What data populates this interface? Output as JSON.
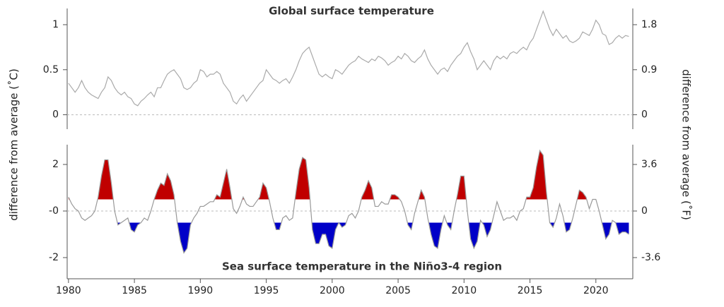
{
  "chart_data": [
    {
      "type": "line",
      "title": "Global surface temperature",
      "ylabel": "difference from average (˚C)",
      "y2label": "difference from average (˚F)",
      "x": [
        1980,
        1980.25,
        1980.5,
        1980.75,
        1981,
        1981.25,
        1981.5,
        1981.75,
        1982,
        1982.25,
        1982.5,
        1982.75,
        1983,
        1983.25,
        1983.5,
        1983.75,
        1984,
        1984.25,
        1984.5,
        1984.75,
        1985,
        1985.25,
        1985.5,
        1985.75,
        1986,
        1986.25,
        1986.5,
        1986.75,
        1987,
        1987.25,
        1987.5,
        1987.75,
        1988,
        1988.25,
        1988.5,
        1988.75,
        1989,
        1989.25,
        1989.5,
        1989.75,
        1990,
        1990.25,
        1990.5,
        1990.75,
        1991,
        1991.25,
        1991.5,
        1991.75,
        1992,
        1992.25,
        1992.5,
        1992.75,
        1993,
        1993.25,
        1993.5,
        1993.75,
        1994,
        1994.25,
        1994.5,
        1994.75,
        1995,
        1995.25,
        1995.5,
        1995.75,
        1996,
        1996.25,
        1996.5,
        1996.75,
        1997,
        1997.25,
        1997.5,
        1997.75,
        1998,
        1998.25,
        1998.5,
        1998.75,
        1999,
        1999.25,
        1999.5,
        1999.75,
        2000,
        2000.25,
        2000.5,
        2000.75,
        2001,
        2001.25,
        2001.5,
        2001.75,
        2002,
        2002.25,
        2002.5,
        2002.75,
        2003,
        2003.25,
        2003.5,
        2003.75,
        2004,
        2004.25,
        2004.5,
        2004.75,
        2005,
        2005.25,
        2005.5,
        2005.75,
        2006,
        2006.25,
        2006.5,
        2006.75,
        2007,
        2007.25,
        2007.5,
        2007.75,
        2008,
        2008.25,
        2008.5,
        2008.75,
        2009,
        2009.25,
        2009.5,
        2009.75,
        2010,
        2010.25,
        2010.5,
        2010.75,
        2011,
        2011.25,
        2011.5,
        2011.75,
        2012,
        2012.25,
        2012.5,
        2012.75,
        2013,
        2013.25,
        2013.5,
        2013.75,
        2014,
        2014.25,
        2014.5,
        2014.75,
        2015,
        2015.25,
        2015.5,
        2015.75,
        2016,
        2016.25,
        2016.5,
        2016.75,
        2017,
        2017.25,
        2017.5,
        2017.75,
        2018,
        2018.25,
        2018.5,
        2018.75,
        2019,
        2019.25,
        2019.5,
        2019.75,
        2020,
        2020.25,
        2020.5,
        2020.75,
        2021,
        2021.25,
        2021.5,
        2021.75,
        2022,
        2022.25,
        2022.5
      ],
      "values": [
        0.35,
        0.3,
        0.25,
        0.3,
        0.38,
        0.3,
        0.25,
        0.22,
        0.2,
        0.18,
        0.25,
        0.3,
        0.42,
        0.38,
        0.3,
        0.25,
        0.22,
        0.25,
        0.2,
        0.18,
        0.12,
        0.1,
        0.15,
        0.18,
        0.22,
        0.25,
        0.2,
        0.3,
        0.3,
        0.38,
        0.45,
        0.48,
        0.5,
        0.45,
        0.4,
        0.3,
        0.28,
        0.3,
        0.35,
        0.38,
        0.5,
        0.48,
        0.42,
        0.45,
        0.45,
        0.48,
        0.45,
        0.35,
        0.3,
        0.25,
        0.15,
        0.12,
        0.18,
        0.22,
        0.15,
        0.2,
        0.25,
        0.3,
        0.35,
        0.38,
        0.5,
        0.45,
        0.4,
        0.38,
        0.35,
        0.38,
        0.4,
        0.35,
        0.42,
        0.5,
        0.6,
        0.68,
        0.72,
        0.75,
        0.65,
        0.55,
        0.45,
        0.42,
        0.45,
        0.42,
        0.4,
        0.5,
        0.48,
        0.45,
        0.5,
        0.55,
        0.58,
        0.6,
        0.65,
        0.62,
        0.6,
        0.58,
        0.62,
        0.6,
        0.65,
        0.63,
        0.6,
        0.55,
        0.58,
        0.6,
        0.65,
        0.62,
        0.68,
        0.65,
        0.6,
        0.58,
        0.62,
        0.65,
        0.72,
        0.62,
        0.55,
        0.5,
        0.45,
        0.5,
        0.52,
        0.48,
        0.55,
        0.6,
        0.65,
        0.68,
        0.75,
        0.8,
        0.7,
        0.62,
        0.5,
        0.55,
        0.6,
        0.55,
        0.5,
        0.6,
        0.65,
        0.62,
        0.65,
        0.62,
        0.68,
        0.7,
        0.68,
        0.72,
        0.75,
        0.72,
        0.8,
        0.85,
        0.95,
        1.05,
        1.15,
        1.05,
        0.95,
        0.88,
        0.95,
        0.9,
        0.85,
        0.88,
        0.82,
        0.8,
        0.82,
        0.85,
        0.92,
        0.9,
        0.88,
        0.95,
        1.05,
        1.0,
        0.9,
        0.88,
        0.78,
        0.8,
        0.85,
        0.88,
        0.85,
        0.88,
        0.87
      ],
      "color": "#aaaaaa",
      "xlim": [
        1979.9,
        2022.8
      ],
      "ylim": [
        -0.16,
        1.18
      ],
      "yticks": [
        0,
        0.5,
        1
      ],
      "y2lim": [
        -0.288,
        2.124
      ],
      "y2ticks": [
        0,
        0.9,
        1.8
      ]
    },
    {
      "type": "line",
      "title": "Sea surface temperature in the Niño3-4 region",
      "x": [
        1980,
        1980.25,
        1980.5,
        1980.75,
        1981,
        1981.25,
        1981.5,
        1981.75,
        1982,
        1982.25,
        1982.5,
        1982.75,
        1983,
        1983.25,
        1983.5,
        1983.75,
        1984,
        1984.25,
        1984.5,
        1984.75,
        1985,
        1985.25,
        1985.5,
        1985.75,
        1986,
        1986.25,
        1986.5,
        1986.75,
        1987,
        1987.25,
        1987.5,
        1987.75,
        1988,
        1988.25,
        1988.5,
        1988.75,
        1989,
        1989.25,
        1989.5,
        1989.75,
        1990,
        1990.25,
        1990.5,
        1990.75,
        1991,
        1991.25,
        1991.5,
        1991.75,
        1992,
        1992.25,
        1992.5,
        1992.75,
        1993,
        1993.25,
        1993.5,
        1993.75,
        1994,
        1994.25,
        1994.5,
        1994.75,
        1995,
        1995.25,
        1995.5,
        1995.75,
        1996,
        1996.25,
        1996.5,
        1996.75,
        1997,
        1997.25,
        1997.5,
        1997.75,
        1998,
        1998.25,
        1998.5,
        1998.75,
        1999,
        1999.25,
        1999.5,
        1999.75,
        2000,
        2000.25,
        2000.5,
        2000.75,
        2001,
        2001.25,
        2001.5,
        2001.75,
        2002,
        2002.25,
        2002.5,
        2002.75,
        2003,
        2003.25,
        2003.5,
        2003.75,
        2004,
        2004.25,
        2004.5,
        2004.75,
        2005,
        2005.25,
        2005.5,
        2005.75,
        2006,
        2006.25,
        2006.5,
        2006.75,
        2007,
        2007.25,
        2007.5,
        2007.75,
        2008,
        2008.25,
        2008.5,
        2008.75,
        2009,
        2009.25,
        2009.5,
        2009.75,
        2010,
        2010.25,
        2010.5,
        2010.75,
        2011,
        2011.25,
        2011.5,
        2011.75,
        2012,
        2012.25,
        2012.5,
        2012.75,
        2013,
        2013.25,
        2013.5,
        2013.75,
        2014,
        2014.25,
        2014.5,
        2014.75,
        2015,
        2015.25,
        2015.5,
        2015.75,
        2016,
        2016.25,
        2016.5,
        2016.75,
        2017,
        2017.25,
        2017.5,
        2017.75,
        2018,
        2018.25,
        2018.5,
        2018.75,
        2019,
        2019.25,
        2019.5,
        2019.75,
        2020,
        2020.25,
        2020.5,
        2020.75,
        2021,
        2021.25,
        2021.5,
        2021.75,
        2022,
        2022.25,
        2022.5
      ],
      "values": [
        0.6,
        0.3,
        0.1,
        0.0,
        -0.3,
        -0.4,
        -0.3,
        -0.2,
        0.0,
        0.6,
        1.5,
        2.2,
        2.2,
        1.2,
        0.0,
        -0.6,
        -0.5,
        -0.4,
        -0.3,
        -0.8,
        -0.9,
        -0.6,
        -0.5,
        -0.3,
        -0.4,
        0.0,
        0.5,
        0.9,
        1.2,
        1.1,
        1.6,
        1.3,
        0.7,
        -0.5,
        -1.3,
        -1.8,
        -1.6,
        -0.6,
        -0.3,
        -0.1,
        0.2,
        0.2,
        0.3,
        0.4,
        0.4,
        0.7,
        0.6,
        1.2,
        1.8,
        1.0,
        0.1,
        -0.1,
        0.2,
        0.6,
        0.3,
        0.2,
        0.2,
        0.4,
        0.6,
        1.2,
        1.0,
        0.4,
        -0.3,
        -0.8,
        -0.8,
        -0.3,
        -0.2,
        -0.4,
        -0.3,
        0.8,
        1.8,
        2.3,
        2.2,
        1.0,
        -0.8,
        -1.4,
        -1.4,
        -1.0,
        -1.0,
        -1.5,
        -1.6,
        -0.8,
        -0.5,
        -0.7,
        -0.6,
        -0.2,
        -0.1,
        -0.3,
        0.0,
        0.6,
        0.9,
        1.3,
        1.0,
        0.2,
        0.2,
        0.4,
        0.3,
        0.3,
        0.7,
        0.7,
        0.6,
        0.4,
        0.0,
        -0.6,
        -0.8,
        -0.1,
        0.4,
        0.9,
        0.6,
        -0.3,
        -1.0,
        -1.5,
        -1.6,
        -0.8,
        -0.2,
        -0.6,
        -0.8,
        0.0,
        0.7,
        1.5,
        1.5,
        0.0,
        -1.2,
        -1.6,
        -1.3,
        -0.4,
        -0.6,
        -1.1,
        -0.8,
        -0.2,
        0.4,
        0.0,
        -0.4,
        -0.3,
        -0.3,
        -0.2,
        -0.4,
        0.0,
        0.1,
        0.6,
        0.6,
        1.0,
        1.9,
        2.6,
        2.4,
        0.8,
        -0.5,
        -0.7,
        -0.3,
        0.3,
        -0.2,
        -0.9,
        -0.8,
        -0.3,
        0.3,
        0.9,
        0.8,
        0.6,
        0.1,
        0.5,
        0.5,
        0.0,
        -0.6,
        -1.2,
        -1.0,
        -0.4,
        -0.5,
        -1.0,
        -0.9,
        -0.9,
        -1.0
      ],
      "color": "#999999",
      "highlight": [
        {
          "above": 0.5,
          "color": "#c00000"
        },
        {
          "below": -0.5,
          "color": "#0000c8"
        }
      ],
      "xlim": [
        1979.9,
        2022.8
      ],
      "xticks": [
        1980,
        1985,
        1990,
        1995,
        2000,
        2005,
        2010,
        2015,
        2020
      ],
      "ylim": [
        -2.91,
        2.85
      ],
      "yticks": [
        -2,
        {
          "value": 0,
          "label": "-0"
        },
        2
      ],
      "y2lim": [
        -5.238,
        5.13
      ],
      "y2ticks": [
        -3.6,
        0,
        3.6
      ]
    }
  ]
}
